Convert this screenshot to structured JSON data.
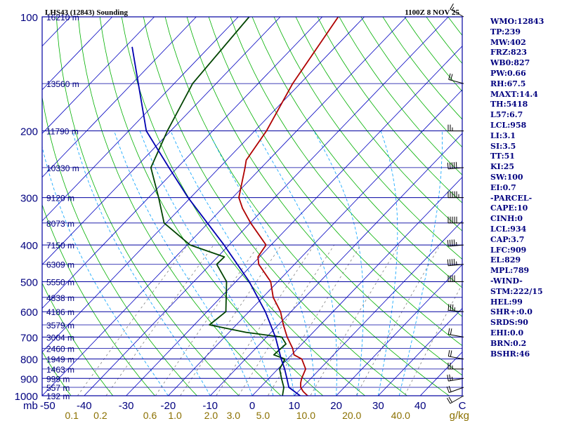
{
  "header": {
    "title": "LHS43 (12843) Sounding",
    "time": "1100Z  8 NOV 25"
  },
  "colors": {
    "frame": "#0000a0",
    "isobar": "#0000a0",
    "isotherm": "#0000c0",
    "dry_adiabat": "#00b000",
    "moist_adiabat": "#00a0ff",
    "mixing_ratio": "#808080",
    "temperature": "#b00000",
    "dewpoint": "#004400",
    "parcel": "#0000b0",
    "text": "#00007f",
    "axis_text": "#8b7000"
  },
  "stats": [
    "WMO:12843",
    "TP:239",
    "MW:402",
    "FRZ:823",
    "WB0:827",
    "PW:0.66",
    "RH:67.5",
    "MAXT:14.4",
    "TH:5418",
    "L57:6.7",
    "LCL:958",
    "LI:3.1",
    "SI:3.5",
    "TT:51",
    "KI:25",
    "SW:100",
    "EI:0.7",
    "-PARCEL-",
    "CAPE:10",
    "CINH:0",
    "LCL:934",
    "CAP:3.7",
    "LFC:909",
    "EL:829",
    "MPL:789",
    "-WIND-",
    "STM:222/15",
    "HEL:99",
    "SHR+:0.0",
    "SRDS:90",
    "EHI:0.0",
    "BRN:0.2",
    "BSHR:46"
  ],
  "chart_data": {
    "type": "line",
    "title": "LHS43 (12843) Sounding",
    "xlabel": "",
    "ylabel": "mb",
    "xlim": [
      -50,
      50
    ],
    "ylim": [
      1000,
      100
    ],
    "y_scale": "log-pressure",
    "grid": true,
    "x_ticks": [
      -50,
      -40,
      -30,
      -20,
      -10,
      0,
      10,
      20,
      30,
      40,
      50
    ],
    "x_tick_labels": [
      "-50",
      "-40",
      "-30",
      "-20",
      "-10",
      "0",
      "10",
      "20",
      "30",
      "40",
      "C"
    ],
    "pressure_levels": [
      100,
      200,
      300,
      400,
      500,
      600,
      700,
      800,
      900,
      1000
    ],
    "pressure_tick_labels": [
      "100",
      "200",
      "300",
      "400",
      "500",
      "600",
      "700",
      "800",
      "900",
      "1000"
    ],
    "axis_unit_label": "mb",
    "height_labels": [
      {
        "p": 100,
        "label": "16210 m"
      },
      {
        "p": 150,
        "label": "13560 m"
      },
      {
        "p": 200,
        "label": "11790 m"
      },
      {
        "p": 250,
        "label": "10330 m"
      },
      {
        "p": 300,
        "label": "9120 m"
      },
      {
        "p": 350,
        "label": "8073 m"
      },
      {
        "p": 400,
        "label": "7150 m"
      },
      {
        "p": 450,
        "label": "6309 m"
      },
      {
        "p": 500,
        "label": "5550 m"
      },
      {
        "p": 550,
        "label": "4838 m"
      },
      {
        "p": 600,
        "label": "4186 m"
      },
      {
        "p": 650,
        "label": "3579 m"
      },
      {
        "p": 700,
        "label": "3004 m"
      },
      {
        "p": 750,
        "label": "2460 m"
      },
      {
        "p": 800,
        "label": "1949 m"
      },
      {
        "p": 850,
        "label": "1463 m"
      },
      {
        "p": 900,
        "label": "999 m"
      },
      {
        "p": 950,
        "label": "557 m"
      },
      {
        "p": 1000,
        "label": "132 m"
      }
    ],
    "mixing_ratio_values": [
      0.1,
      0.2,
      0.6,
      1.0,
      2.0,
      3.0,
      5.0,
      10.0,
      20.0,
      40.0
    ],
    "mixing_ratio_labels": [
      "0.1",
      "0.2",
      "0.6",
      "1.0",
      "2.0",
      "3.0",
      "5.0",
      "10.0",
      "20.0",
      "40.0"
    ],
    "mixing_ratio_unit": "g/kg",
    "series": [
      {
        "name": "",
        "kind": "temperature",
        "points": [
          {
            "p": 1013,
            "t": 14.4
          },
          {
            "p": 1000,
            "t": 13.2
          },
          {
            "p": 975,
            "t": 11.2
          },
          {
            "p": 950,
            "t": 9.6
          },
          {
            "p": 925,
            "t": 8.6
          },
          {
            "p": 900,
            "t": 7.8
          },
          {
            "p": 850,
            "t": 6.6
          },
          {
            "p": 800,
            "t": 3.4
          },
          {
            "p": 780,
            "t": 0.6
          },
          {
            "p": 750,
            "t": -1.2
          },
          {
            "p": 700,
            "t": -5.1
          },
          {
            "p": 650,
            "t": -8.8
          },
          {
            "p": 600,
            "t": -12.5
          },
          {
            "p": 550,
            "t": -17.5
          },
          {
            "p": 500,
            "t": -21.7
          },
          {
            "p": 450,
            "t": -28.5
          },
          {
            "p": 430,
            "t": -30.4
          },
          {
            "p": 400,
            "t": -31.2
          },
          {
            "p": 350,
            "t": -39.9
          },
          {
            "p": 320,
            "t": -45.2
          },
          {
            "p": 300,
            "t": -48.5
          },
          {
            "p": 250,
            "t": -53.9
          },
          {
            "p": 239,
            "t": -55.3
          },
          {
            "p": 200,
            "t": -57.2
          },
          {
            "p": 150,
            "t": -61.8
          },
          {
            "p": 100,
            "t": -66.2
          }
        ]
      },
      {
        "name": "",
        "kind": "dewpoint",
        "points": [
          {
            "p": 1013,
            "t": 8.6
          },
          {
            "p": 1000,
            "t": 7.2
          },
          {
            "p": 950,
            "t": 5.6
          },
          {
            "p": 900,
            "t": 3.0
          },
          {
            "p": 850,
            "t": 0.4
          },
          {
            "p": 800,
            "t": -0.6
          },
          {
            "p": 780,
            "t": -4.2
          },
          {
            "p": 730,
            "t": -3.8
          },
          {
            "p": 700,
            "t": -6.4
          },
          {
            "p": 680,
            "t": -16.0
          },
          {
            "p": 650,
            "t": -26.4
          },
          {
            "p": 600,
            "t": -25.5
          },
          {
            "p": 500,
            "t": -32.2
          },
          {
            "p": 450,
            "t": -38.5
          },
          {
            "p": 430,
            "t": -38.4
          },
          {
            "p": 400,
            "t": -49.3
          },
          {
            "p": 350,
            "t": -60.5
          },
          {
            "p": 300,
            "t": -67.6
          },
          {
            "p": 250,
            "t": -76.3
          },
          {
            "p": 200,
            "t": -80.8
          },
          {
            "p": 150,
            "t": -85.6
          },
          {
            "p": 100,
            "t": -87.4
          }
        ]
      },
      {
        "name": "",
        "kind": "parcel",
        "points": [
          {
            "p": 1013,
            "t": 12.8
          },
          {
            "p": 1000,
            "t": 11.4
          },
          {
            "p": 950,
            "t": 6.8
          },
          {
            "p": 934,
            "t": 6.0
          },
          {
            "p": 900,
            "t": 4.3
          },
          {
            "p": 850,
            "t": 1.6
          },
          {
            "p": 800,
            "t": -1.5
          },
          {
            "p": 700,
            "t": -7.9
          },
          {
            "p": 600,
            "t": -16.1
          },
          {
            "p": 500,
            "t": -26.8
          },
          {
            "p": 400,
            "t": -41.2
          },
          {
            "p": 300,
            "t": -60.6
          },
          {
            "p": 250,
            "t": -72.0
          },
          {
            "p": 200,
            "t": -85.8
          },
          {
            "p": 120,
            "t": -108.4
          }
        ]
      }
    ],
    "wind_barbs": [
      {
        "p": 1000,
        "dir": 240,
        "kt": 20
      },
      {
        "p": 950,
        "dir": 250,
        "kt": 20
      },
      {
        "p": 900,
        "dir": 260,
        "kt": 25
      },
      {
        "p": 850,
        "dir": 270,
        "kt": 25
      },
      {
        "p": 800,
        "dir": 280,
        "kt": 20
      },
      {
        "p": 700,
        "dir": 280,
        "kt": 20
      },
      {
        "p": 600,
        "dir": 275,
        "kt": 35
      },
      {
        "p": 500,
        "dir": 270,
        "kt": 40
      },
      {
        "p": 450,
        "dir": 265,
        "kt": 45
      },
      {
        "p": 400,
        "dir": 265,
        "kt": 45
      },
      {
        "p": 350,
        "dir": 270,
        "kt": 50
      },
      {
        "p": 300,
        "dir": 270,
        "kt": 55
      },
      {
        "p": 250,
        "dir": 265,
        "kt": 50
      },
      {
        "p": 200,
        "dir": 270,
        "kt": 25
      },
      {
        "p": 150,
        "dir": 285,
        "kt": 20
      },
      {
        "p": 100,
        "dir": 300,
        "kt": 15
      }
    ]
  }
}
